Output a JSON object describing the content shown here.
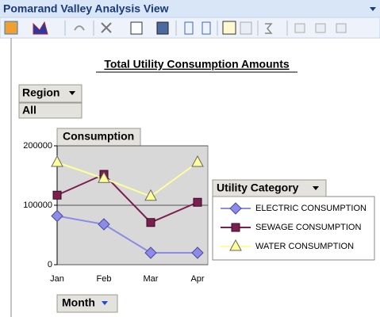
{
  "window": {
    "title": "Pomarand Valley Analysis View"
  },
  "fields": {
    "filter": "Region",
    "filter_value": "All",
    "data": "Consumption",
    "series": "Utility Category",
    "category": "Month"
  },
  "chart_data": {
    "type": "line",
    "title": "Total Utility Consumption Amounts",
    "categories": [
      "Jan",
      "Feb",
      "Mar",
      "Apr"
    ],
    "series": [
      {
        "name": "ELECTRIC CONSUMPTION",
        "color": "#8c8ce6",
        "marker": "diamond",
        "values": [
          82000,
          68000,
          20000,
          20000
        ]
      },
      {
        "name": "SEWAGE CONSUMPTION",
        "color": "#7a1f4f",
        "marker": "square",
        "values": [
          117000,
          152000,
          71000,
          105000
        ]
      },
      {
        "name": "WATER CONSUMPTION",
        "color": "#ffff99",
        "marker": "triangle",
        "values": [
          172000,
          145000,
          115000,
          172000
        ]
      }
    ],
    "ylim": [
      0,
      200000
    ],
    "yticks": [
      0,
      100000,
      200000
    ],
    "grid": true,
    "legend": "right"
  }
}
